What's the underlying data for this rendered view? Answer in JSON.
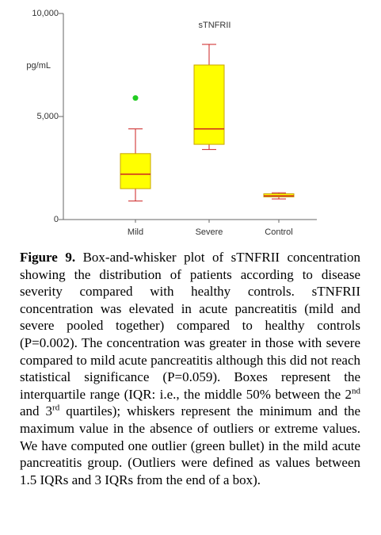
{
  "chart_data": {
    "type": "box",
    "title": "sTNFRII",
    "y_label": "pg/mL",
    "categories": [
      "Mild",
      "Severe",
      "Control"
    ],
    "min": [
      900,
      3400,
      1000
    ],
    "q1": [
      1500,
      3650,
      1100
    ],
    "median": [
      2200,
      4400,
      1150
    ],
    "q3": [
      3200,
      7500,
      1250
    ],
    "max": [
      4400,
      8500,
      1300
    ],
    "outliers": [
      [
        5900
      ],
      [],
      []
    ],
    "box_color": "#ffff00",
    "line_color": "#cc2222",
    "outlier_color": "#22cc22",
    "ylim": [
      0,
      10000
    ],
    "yticks": [
      0,
      {
        "value": 5000,
        "label": "5,000"
      },
      {
        "value": 10000,
        "label": "10,000"
      }
    ]
  },
  "caption": {
    "label": "Figure 9.",
    "part1": "Box-and-whisker plot of sTNFRII concentration showing the distribution of patients according to disease severity compared with healthy controls. sTNFRII concentration was elevated in acute pancreatitis (mild and severe pooled together) compared to healthy controls (P=0.002). The concentration was greater in those with severe compared to mild acute pancreatitis although this did not reach statistical significance (P=0.059). Boxes represent the interquartile range (IQR: i.e., the middle 50% between the 2",
    "sup1": "nd",
    "part2": " and 3",
    "sup2": "rd",
    "part3": " quartiles); whiskers represent the minimum and the maximum value in the absence of outliers or extreme values. We have computed one outlier (green bullet) in the mild acute pancreatitis group. (Outliers were defined as values between 1.5 IQRs and 3 IQRs from the end of a box)."
  }
}
